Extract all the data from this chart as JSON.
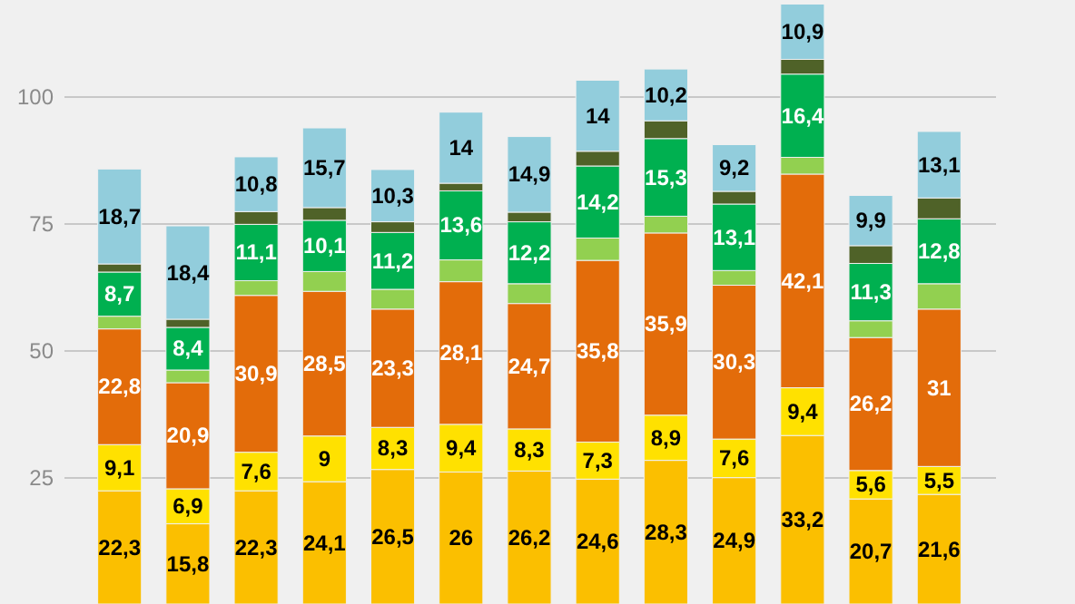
{
  "chart_data": {
    "type": "bar",
    "stacked": true,
    "categories": [
      null,
      null,
      null,
      null,
      null,
      null,
      null,
      null,
      null,
      null,
      null,
      null,
      null
    ],
    "series": [
      {
        "color": "#fbbf00",
        "values": [
          22.3,
          15.8,
          22.3,
          24.1,
          26.5,
          26,
          26.2,
          24.6,
          28.3,
          24.9,
          33.2,
          20.7,
          21.6
        ],
        "value_labels": [
          "22,3",
          "15,8",
          "22,3",
          "24,1",
          "26,5",
          "26",
          "26,2",
          "24,6",
          "28,3",
          "24,9",
          "33,2",
          "20,7",
          "21,6"
        ]
      },
      {
        "color": "#ffe100",
        "values": [
          9.1,
          6.9,
          7.6,
          9,
          8.3,
          9.4,
          8.3,
          7.3,
          8.9,
          7.6,
          9.4,
          5.6,
          5.5
        ],
        "value_labels": [
          "9,1",
          "6,9",
          "7,6",
          "9",
          "8,3",
          "9,4",
          "8,3",
          "7,3",
          "8,9",
          "7,6",
          "9,4",
          "5,6",
          "5,5"
        ]
      },
      {
        "color": "#e36c0a",
        "values": [
          22.8,
          20.9,
          30.9,
          28.5,
          23.3,
          28.1,
          24.7,
          35.8,
          35.9,
          30.3,
          42.1,
          26.2,
          31
        ],
        "value_labels": [
          "22,8",
          "20,9",
          "30,9",
          "28,5",
          "23,3",
          "28,1",
          "24,7",
          "35,8",
          "35,9",
          "30,3",
          "42,1",
          "26,2",
          "31"
        ]
      },
      {
        "color": "#92d050",
        "values": [
          2.5,
          2.5,
          2.9,
          3.9,
          3.9,
          4.3,
          3.9,
          4.4,
          3.3,
          2.9,
          3.3,
          3.3,
          5.0
        ]
      },
      {
        "color": "#00b050",
        "values": [
          8.7,
          8.4,
          11.1,
          10.1,
          11.2,
          13.6,
          12.2,
          14.2,
          15.3,
          13.1,
          16.4,
          11.3,
          12.8
        ],
        "value_labels": [
          "8,7",
          "8,4",
          "11,1",
          "10,1",
          "11,2",
          "13,6",
          "12,2",
          "14,2",
          "15,3",
          "13,1",
          "16,4",
          "11,3",
          "12,8"
        ]
      },
      {
        "color": "#4f6228",
        "values": [
          1.6,
          1.6,
          2.5,
          2.5,
          2.1,
          1.5,
          1.9,
          2.9,
          3.5,
          2.5,
          2.9,
          3.5,
          4.1
        ]
      },
      {
        "color": "#92cddc",
        "values": [
          18.7,
          18.4,
          10.8,
          15.7,
          10.3,
          14,
          14.9,
          14,
          10.2,
          9.2,
          10.9,
          9.9,
          13.1
        ],
        "value_labels": [
          "18,7",
          "18,4",
          "10,8",
          "15,7",
          "10,3",
          "14",
          "14,9",
          "14",
          "10,2",
          "9,2",
          "10,9",
          "9,9",
          "13,1"
        ]
      }
    ],
    "ylim": [
      0,
      119
    ],
    "yticks": [
      25,
      50,
      75,
      100
    ],
    "grid": "y"
  }
}
